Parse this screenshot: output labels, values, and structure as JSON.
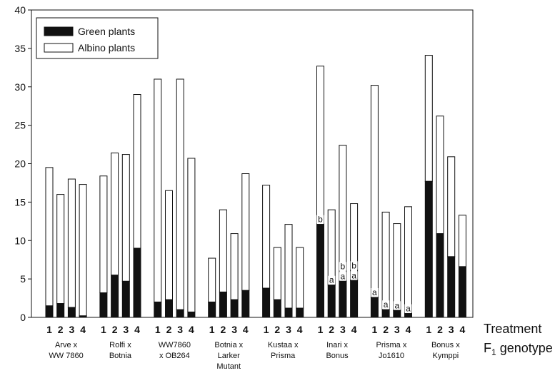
{
  "chart_data": {
    "type": "bar",
    "stacked": true,
    "ylim": [
      0,
      40
    ],
    "yticks": [
      "0",
      "5",
      "10",
      "15",
      "20",
      "25",
      "30",
      "35",
      "40"
    ],
    "treatment_labels": [
      "1",
      "2",
      "3",
      "4"
    ],
    "legend": {
      "placement": "top-left",
      "entries": [
        {
          "name": "Green plants",
          "color": "#111111"
        },
        {
          "name": "Albino plants",
          "color": "#ffffff"
        }
      ]
    },
    "row_labels": {
      "treatment": "Treatment",
      "genotype_prefix": "F",
      "genotype_sub": "1",
      "genotype_suffix": " genotype"
    },
    "groups": [
      {
        "lines": [
          "Arve x",
          "WW 7860"
        ],
        "green": [
          1.5,
          1.8,
          1.3,
          0.2
        ],
        "total": [
          19.5,
          16.0,
          18.0,
          17.3
        ],
        "annotations": []
      },
      {
        "lines": [
          "Rolfi x",
          "Botnia"
        ],
        "green": [
          3.2,
          5.5,
          4.7,
          9.0
        ],
        "total": [
          18.4,
          21.4,
          21.2,
          29.0
        ],
        "annotations": []
      },
      {
        "lines": [
          "WW7860",
          "x OB264"
        ],
        "green": [
          2.0,
          2.3,
          1.0,
          0.7
        ],
        "total": [
          31.0,
          16.5,
          31.0,
          20.7
        ],
        "annotations": []
      },
      {
        "lines": [
          "Botnia x",
          "Larker",
          "Mutant"
        ],
        "green": [
          2.0,
          3.3,
          2.3,
          3.5
        ],
        "total": [
          7.7,
          14.0,
          10.9,
          18.7
        ],
        "annotations": []
      },
      {
        "lines": [
          "Kustaa x",
          "Prisma"
        ],
        "green": [
          3.8,
          2.3,
          1.2,
          1.2
        ],
        "total": [
          17.2,
          9.1,
          12.1,
          9.1
        ],
        "annotations": []
      },
      {
        "lines": [
          "Inari x",
          "Bonus"
        ],
        "green": [
          12.1,
          4.2,
          4.7,
          4.8
        ],
        "total": [
          32.7,
          14.0,
          22.4,
          14.8
        ],
        "annotations": [
          {
            "bar": 0,
            "text": "b"
          },
          {
            "bar": 1,
            "text": "a"
          },
          {
            "bar": 2,
            "text": "a"
          },
          {
            "bar": 2,
            "text": "b"
          },
          {
            "bar": 3,
            "text": "a"
          },
          {
            "bar": 3,
            "text": "b"
          }
        ]
      },
      {
        "lines": [
          "Prisma x",
          "Jo1610"
        ],
        "green": [
          2.6,
          1.0,
          0.9,
          0.5
        ],
        "total": [
          30.2,
          13.7,
          12.2,
          14.4
        ],
        "annotations": [
          {
            "bar": 0,
            "text": "a"
          },
          {
            "bar": 1,
            "text": "a"
          },
          {
            "bar": 2,
            "text": "a"
          },
          {
            "bar": 3,
            "text": "a"
          }
        ]
      },
      {
        "lines": [
          "Bonus x",
          "Kymppi"
        ],
        "green": [
          17.7,
          10.9,
          7.9,
          6.6
        ],
        "total": [
          34.1,
          26.2,
          20.9,
          13.3
        ],
        "annotations": []
      }
    ]
  }
}
